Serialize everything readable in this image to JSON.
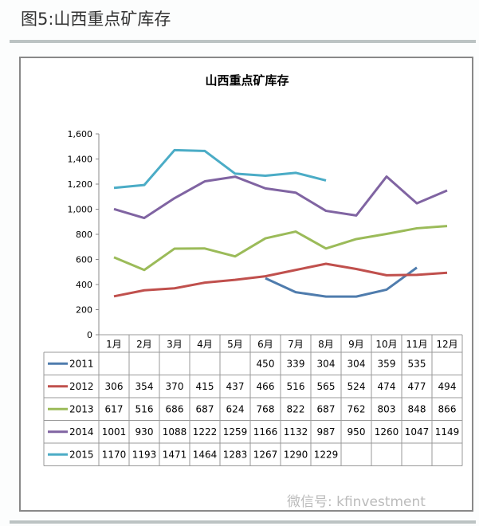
{
  "figure_title": "图5:山西重点矿库存",
  "watermark": "微信号: kfinvestment",
  "chart_data": {
    "type": "line",
    "title": "山西重点矿库存",
    "categories": [
      "1月",
      "2月",
      "3月",
      "4月",
      "5月",
      "6月",
      "7月",
      "8月",
      "9月",
      "10月",
      "11月",
      "12月"
    ],
    "ylim": [
      0,
      1600
    ],
    "yticks": [
      "0",
      "200",
      "400",
      "600",
      "800",
      "1,000",
      "1,200",
      "1,400",
      "1,600"
    ],
    "grid": false,
    "legend": "data-table",
    "series": [
      {
        "name": "2011",
        "color": "#4f7cad",
        "values": [
          null,
          null,
          null,
          null,
          null,
          450,
          339,
          304,
          304,
          359,
          535,
          null
        ]
      },
      {
        "name": "2012",
        "color": "#c0504d",
        "values": [
          306,
          354,
          370,
          415,
          437,
          466,
          516,
          565,
          524,
          474,
          477,
          494
        ]
      },
      {
        "name": "2013",
        "color": "#9bbb59",
        "values": [
          617,
          516,
          686,
          687,
          624,
          768,
          822,
          687,
          762,
          803,
          848,
          866
        ]
      },
      {
        "name": "2014",
        "color": "#8064a2",
        "values": [
          1001,
          930,
          1088,
          1222,
          1259,
          1166,
          1132,
          987,
          950,
          1260,
          1047,
          1149
        ]
      },
      {
        "name": "2015",
        "color": "#4bacc6",
        "values": [
          1170,
          1193,
          1471,
          1464,
          1283,
          1267,
          1290,
          1229,
          null,
          null,
          null,
          null
        ]
      }
    ]
  }
}
